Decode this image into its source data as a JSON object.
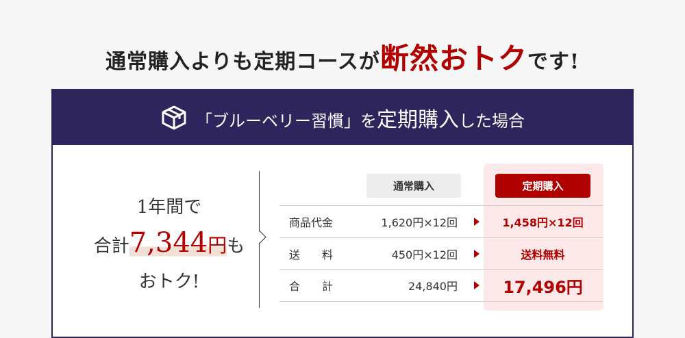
{
  "title": {
    "pre": "通常購入よりも定期コースが",
    "emphasis": "断然おトク",
    "post": "です!"
  },
  "header": {
    "icon": "box-icon",
    "pre": "「ブルーベリー習慣」を",
    "big": "定期購入",
    "post": "した場合"
  },
  "summary": {
    "line1": "1年間で",
    "pre": "合計",
    "amount": "7,344",
    "unit": "円",
    "post": "も",
    "line3": "おトク!"
  },
  "table": {
    "col_normal": "通常購入",
    "col_subscription": "定期購入",
    "rows": [
      {
        "label": "商品代金",
        "normal": "1,620円×12回",
        "subscription": "1,458円×12回"
      },
      {
        "label": "送　　料",
        "normal": "450円×12回",
        "subscription": "送料無料"
      },
      {
        "label": "合　　計",
        "normal": "24,840円",
        "subscription": "17,496円"
      }
    ]
  },
  "colors": {
    "navy": "#2e255c",
    "red": "#b00000",
    "pink": "#fde9ea"
  }
}
